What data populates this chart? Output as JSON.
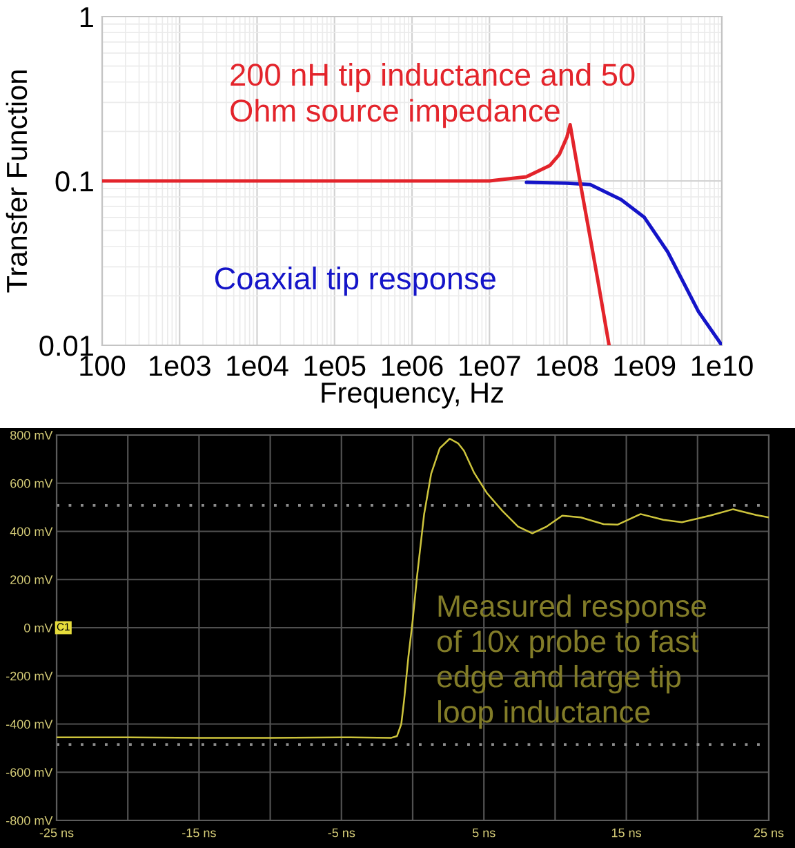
{
  "chart_data": [
    {
      "type": "line",
      "xlabel": "Frequency, Hz",
      "ylabel": "Transfer Function",
      "log": "xy",
      "xlim": [
        100,
        10000000000
      ],
      "ylim": [
        0.01,
        1
      ],
      "xticks": [
        100,
        {
          "value": 1000,
          "label": "1e03"
        },
        {
          "value": 10000,
          "label": "1e04"
        },
        {
          "value": 100000,
          "label": "1e05"
        },
        {
          "value": 1000000,
          "label": "1e06"
        },
        {
          "value": 10000000,
          "label": "1e07"
        },
        {
          "value": 100000000,
          "label": "1e08"
        },
        {
          "value": 1000000000,
          "label": "1e09"
        },
        {
          "value": 10000000000,
          "label": "1e10"
        }
      ],
      "yticks": [
        0.01,
        0.1,
        1
      ],
      "grid": true,
      "series": [
        {
          "name": "200 nH tip inductance and 50\nOhm source impedance",
          "color": "#e3242b",
          "x": [
            100,
            1000,
            10000,
            100000,
            1000000,
            10000000,
            30000000,
            60000000,
            80000000,
            100000000,
            110000000,
            125000000,
            150000000,
            200000000,
            250000000,
            350000000
          ],
          "values": [
            0.1,
            0.1,
            0.1,
            0.1,
            0.1,
            0.1,
            0.106,
            0.124,
            0.145,
            0.185,
            0.22,
            0.155,
            0.095,
            0.045,
            0.025,
            0.01
          ]
        },
        {
          "name": "Coaxial tip response",
          "color": "#1414c8",
          "x": [
            30000000,
            100000000,
            200000000,
            500000000,
            1000000000,
            2000000000,
            5000000000,
            10000000000
          ],
          "values": [
            0.098,
            0.097,
            0.095,
            0.077,
            0.06,
            0.037,
            0.016,
            0.01
          ]
        }
      ]
    },
    {
      "type": "line",
      "xlim": [
        -25,
        25
      ],
      "ylim": [
        -800,
        800
      ],
      "xticks": [
        {
          "value": -25,
          "label": "-25 ns"
        },
        {
          "value": -20,
          "label": null
        },
        {
          "value": -15,
          "label": "-15 ns"
        },
        {
          "value": -10,
          "label": null
        },
        {
          "value": -5,
          "label": "-5 ns"
        },
        {
          "value": 0,
          "label": null
        },
        {
          "value": 5,
          "label": "5 ns"
        },
        {
          "value": 10,
          "label": null
        },
        {
          "value": 15,
          "label": "15 ns"
        },
        {
          "value": 20,
          "label": null
        },
        {
          "value": 25,
          "label": "25 ns"
        }
      ],
      "yticks": [
        {
          "value": -800,
          "label": "-800 mV"
        },
        {
          "value": -600,
          "label": "-600 mV"
        },
        {
          "value": -400,
          "label": "-400 mV"
        },
        {
          "value": -200,
          "label": "-200 mV"
        },
        {
          "value": 0,
          "label": "0 mV"
        },
        {
          "value": 200,
          "label": "200 mV"
        },
        {
          "value": 400,
          "label": "400 mV"
        },
        {
          "value": 600,
          "label": "600 mV"
        },
        {
          "value": 800,
          "label": "800 mV"
        }
      ],
      "grid": true,
      "series": [
        {
          "color": "#cdc43c",
          "x": [
            -25,
            -20,
            -15,
            -10,
            -5,
            -1.5,
            -1.1,
            -0.8,
            -0.6,
            -0.3,
            0,
            0.3,
            0.8,
            1.3,
            1.9,
            2.6,
            3.2,
            3.6,
            4.3,
            5.2,
            6.3,
            7.4,
            8.4,
            9.4,
            10.5,
            11.8,
            13.4,
            14.4,
            16,
            17.6,
            18.9,
            20.9,
            22.5,
            24.1,
            25
          ],
          "values": [
            -455,
            -455,
            -457,
            -457,
            -455,
            -457,
            -450,
            -400,
            -300,
            -120,
            30,
            210,
            470,
            640,
            745,
            785,
            765,
            735,
            645,
            560,
            485,
            420,
            392,
            420,
            465,
            458,
            430,
            428,
            472,
            448,
            438,
            466,
            492,
            468,
            458
          ]
        }
      ],
      "ref_lines": [
        {
          "axis": "y",
          "value": 508,
          "line_style": "dotted",
          "color": "#8c8c8c"
        },
        {
          "axis": "y",
          "value": -485,
          "line_style": "dotted",
          "color": "#8c8c8c"
        }
      ],
      "annotations": [
        "Measured response\nof 10x probe to fast\nedge and large tip\nloop inductance",
        "C1"
      ]
    }
  ]
}
